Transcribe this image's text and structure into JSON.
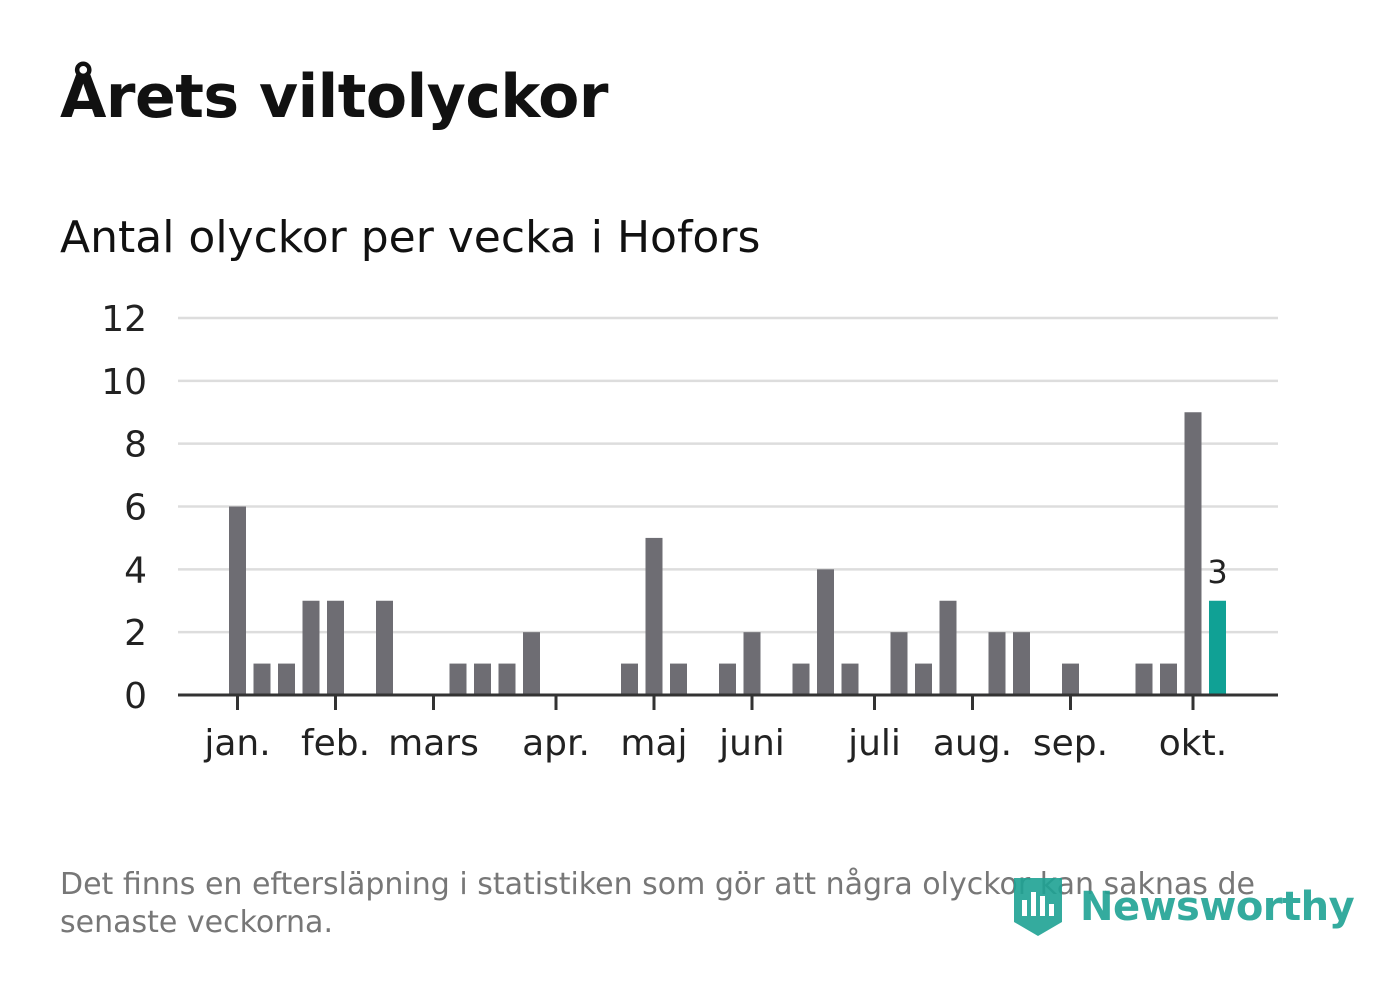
{
  "header": {
    "title": "Årets viltolyckor",
    "subtitle": "Antal olyckor per vecka i Hofors"
  },
  "footer": {
    "note": "Det finns en eftersläpning i statistiken som gör att några olyckor kan saknas de senaste veckorna.",
    "brand": "Newsworthy"
  },
  "colors": {
    "bar": "#6e6d73",
    "highlight": "#10a195",
    "grid": "#dddddd",
    "axis": "#333333",
    "brand": "#1fa394"
  },
  "chart_data": {
    "type": "bar",
    "title": "Antal olyckor per vecka i Hofors",
    "xlabel": "",
    "ylabel": "",
    "ylim": [
      0,
      12
    ],
    "yticks": [
      0,
      2,
      4,
      6,
      8,
      10,
      12
    ],
    "grid": true,
    "weeks": [
      1,
      2,
      3,
      4,
      5,
      6,
      7,
      8,
      9,
      10,
      11,
      12,
      13,
      14,
      15,
      16,
      17,
      18,
      19,
      20,
      21,
      22,
      23,
      24,
      25,
      26,
      27,
      28,
      29,
      30,
      31,
      32,
      33,
      34,
      35,
      36,
      37,
      38,
      39,
      40,
      41
    ],
    "values": [
      6,
      1,
      1,
      3,
      3,
      0,
      3,
      0,
      0,
      1,
      1,
      1,
      2,
      0,
      0,
      0,
      1,
      5,
      1,
      0,
      1,
      2,
      0,
      1,
      4,
      1,
      0,
      2,
      1,
      3,
      0,
      2,
      2,
      0,
      1,
      0,
      0,
      1,
      1,
      9,
      3
    ],
    "highlight_week": 41,
    "highlight_label": "3",
    "month_ticks": [
      {
        "label": "jan.",
        "week": 1
      },
      {
        "label": "feb.",
        "week": 5
      },
      {
        "label": "mars",
        "week": 9
      },
      {
        "label": "apr.",
        "week": 14
      },
      {
        "label": "maj",
        "week": 18
      },
      {
        "label": "juni",
        "week": 22
      },
      {
        "label": "juli",
        "week": 27
      },
      {
        "label": "aug.",
        "week": 31
      },
      {
        "label": "sep.",
        "week": 35
      },
      {
        "label": "okt.",
        "week": 40
      }
    ]
  }
}
